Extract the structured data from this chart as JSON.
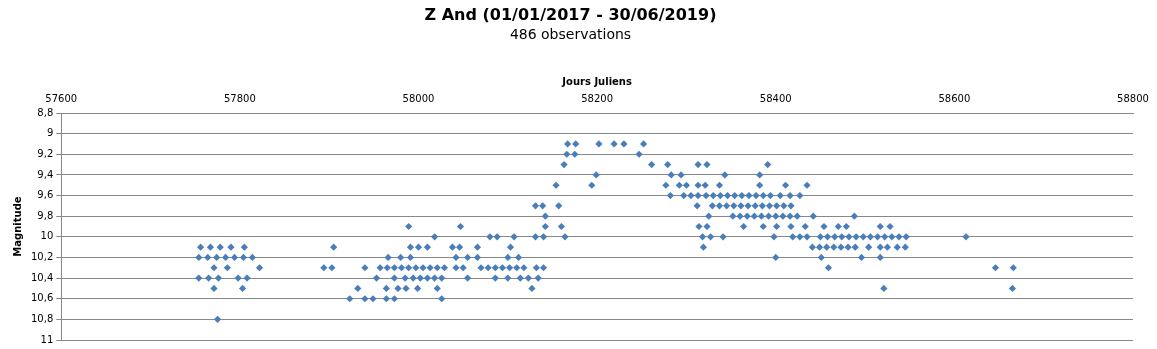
{
  "chart_data": {
    "type": "scatter",
    "title": "Z And (01/01/2017 - 30/06/2019)",
    "subtitle": "486 observations",
    "xlabel": "Jours Juliens",
    "ylabel": "Magnitude",
    "xlim": [
      57600,
      58800
    ],
    "xticks": [
      57600,
      57800,
      58000,
      58200,
      58400,
      58600,
      58800
    ],
    "ylim": [
      11,
      8.8
    ],
    "yticks": [
      {
        "value": 8.8,
        "label": "8,8"
      },
      9,
      {
        "value": 9.2,
        "label": "9,2"
      },
      {
        "value": 9.4,
        "label": "9,4"
      },
      {
        "value": 9.6,
        "label": "9,6"
      },
      {
        "value": 9.8,
        "label": "9,8"
      },
      10,
      {
        "value": 10.2,
        "label": "10,2"
      },
      {
        "value": 10.4,
        "label": "10,4"
      },
      {
        "value": 10.6,
        "label": "10,6"
      },
      {
        "value": 10.8,
        "label": "10,8"
      },
      11
    ],
    "grid": "y",
    "marker": "diamond",
    "series": [
      {
        "color": "#4a7ebb",
        "x": [
          57756,
          57767,
          57778,
          57790,
          57805,
          57754,
          57764,
          57774,
          57784,
          57794,
          57804,
          57814,
          57771,
          57786,
          57822,
          57754,
          57765,
          57776,
          57798,
          57808,
          57771,
          57803,
          57775,
          57905,
          57991,
          58000,
          58010,
          58038,
          58046,
          58066,
          58103,
          57894,
          57903,
          57940,
          57957,
          57965,
          57973,
          57981,
          57989,
          57997,
          58005,
          58013,
          58021,
          58029,
          58042,
          58050,
          58070,
          58078,
          58086,
          58094,
          58102,
          58110,
          58118,
          58132,
          58140,
          57953,
          57973,
          57985,
          57994,
          58002,
          58010,
          58018,
          58026,
          58055,
          58086,
          58100,
          58114,
          58123,
          58134,
          57932,
          57964,
          57977,
          57986,
          57999,
          58021,
          58127,
          57923,
          57940,
          57949,
          57964,
          57973,
          58026,
          57966,
          57980,
          57991,
          58042,
          58055,
          58066,
          58100,
          58112,
          58018,
          58080,
          58088,
          58107,
          58131,
          58140,
          58164,
          57989,
          58047,
          58142,
          58160,
          58142,
          58131,
          58139,
          58157,
          58154,
          58194,
          58277,
          58292,
          58300,
          58313,
          58321,
          58337,
          58382,
          58411,
          58435,
          58163,
          58261,
          58279,
          58313,
          58323,
          58391,
          58166,
          58175,
          58247,
          58167,
          58176,
          58202,
          58219,
          58230,
          58252,
          58199,
          58283,
          58294,
          58343,
          58382,
          58282,
          58297,
          58305,
          58313,
          58322,
          58330,
          58338,
          58346,
          58354,
          58362,
          58370,
          58378,
          58386,
          58394,
          58405,
          58416,
          58427,
          58312,
          58329,
          58337,
          58345,
          58353,
          58361,
          58369,
          58377,
          58385,
          58393,
          58401,
          58409,
          58417,
          58325,
          58352,
          58360,
          58368,
          58376,
          58384,
          58392,
          58400,
          58408,
          58416,
          58424,
          58442,
          58488,
          58314,
          58323,
          58364,
          58386,
          58401,
          58417,
          58433,
          58454,
          58470,
          58479,
          58517,
          58528,
          58318,
          58327,
          58341,
          58398,
          58419,
          58427,
          58435,
          58450,
          58458,
          58466,
          58474,
          58482,
          58490,
          58498,
          58506,
          58514,
          58522,
          58530,
          58538,
          58546,
          58613,
          58319,
          58441,
          58449,
          58457,
          58465,
          58473,
          58481,
          58489,
          58504,
          58517,
          58525,
          58536,
          58545,
          58400,
          58451,
          58496,
          58517,
          58459,
          58646,
          58666,
          58521,
          58665
        ],
        "values": [
          10.1,
          10.1,
          10.1,
          10.1,
          10.1,
          10.2,
          10.2,
          10.2,
          10.2,
          10.2,
          10.2,
          10.2,
          10.3,
          10.3,
          10.3,
          10.4,
          10.4,
          10.4,
          10.4,
          10.4,
          10.5,
          10.5,
          10.8,
          10.1,
          10.1,
          10.1,
          10.1,
          10.1,
          10.1,
          10.1,
          10.1,
          10.3,
          10.3,
          10.3,
          10.3,
          10.3,
          10.3,
          10.3,
          10.3,
          10.3,
          10.3,
          10.3,
          10.3,
          10.3,
          10.3,
          10.3,
          10.3,
          10.3,
          10.3,
          10.3,
          10.3,
          10.3,
          10.3,
          10.3,
          10.3,
          10.4,
          10.4,
          10.4,
          10.4,
          10.4,
          10.4,
          10.4,
          10.4,
          10.4,
          10.4,
          10.4,
          10.4,
          10.4,
          10.4,
          10.5,
          10.5,
          10.5,
          10.5,
          10.5,
          10.5,
          10.5,
          10.6,
          10.6,
          10.6,
          10.6,
          10.6,
          10.6,
          10.2,
          10.2,
          10.2,
          10.2,
          10.2,
          10.2,
          10.2,
          10.2,
          10.0,
          10.0,
          10.0,
          10.0,
          10.0,
          10.0,
          10.0,
          9.9,
          9.9,
          9.9,
          9.9,
          9.8,
          9.7,
          9.7,
          9.7,
          9.5,
          9.5,
          9.5,
          9.5,
          9.5,
          9.5,
          9.5,
          9.5,
          9.5,
          9.5,
          9.5,
          9.3,
          9.3,
          9.3,
          9.3,
          9.3,
          9.3,
          9.2,
          9.2,
          9.2,
          9.1,
          9.1,
          9.1,
          9.1,
          9.1,
          9.1,
          9.4,
          9.4,
          9.4,
          9.4,
          9.4,
          9.6,
          9.6,
          9.6,
          9.6,
          9.6,
          9.6,
          9.6,
          9.6,
          9.6,
          9.6,
          9.6,
          9.6,
          9.6,
          9.6,
          9.6,
          9.6,
          9.6,
          9.7,
          9.7,
          9.7,
          9.7,
          9.7,
          9.7,
          9.7,
          9.7,
          9.7,
          9.7,
          9.7,
          9.7,
          9.7,
          9.8,
          9.8,
          9.8,
          9.8,
          9.8,
          9.8,
          9.8,
          9.8,
          9.8,
          9.8,
          9.8,
          9.8,
          9.8,
          9.9,
          9.9,
          9.9,
          9.9,
          9.9,
          9.9,
          9.9,
          9.9,
          9.9,
          9.9,
          9.9,
          9.9,
          10.0,
          10.0,
          10.0,
          10.0,
          10.0,
          10.0,
          10.0,
          10.0,
          10.0,
          10.0,
          10.0,
          10.0,
          10.0,
          10.0,
          10.0,
          10.0,
          10.0,
          10.0,
          10.0,
          10.0,
          10.0,
          10.1,
          10.1,
          10.1,
          10.1,
          10.1,
          10.1,
          10.1,
          10.1,
          10.1,
          10.1,
          10.1,
          10.1,
          10.1,
          10.2,
          10.2,
          10.2,
          10.2,
          10.3,
          10.3,
          10.3,
          10.5,
          10.5
        ]
      }
    ]
  }
}
